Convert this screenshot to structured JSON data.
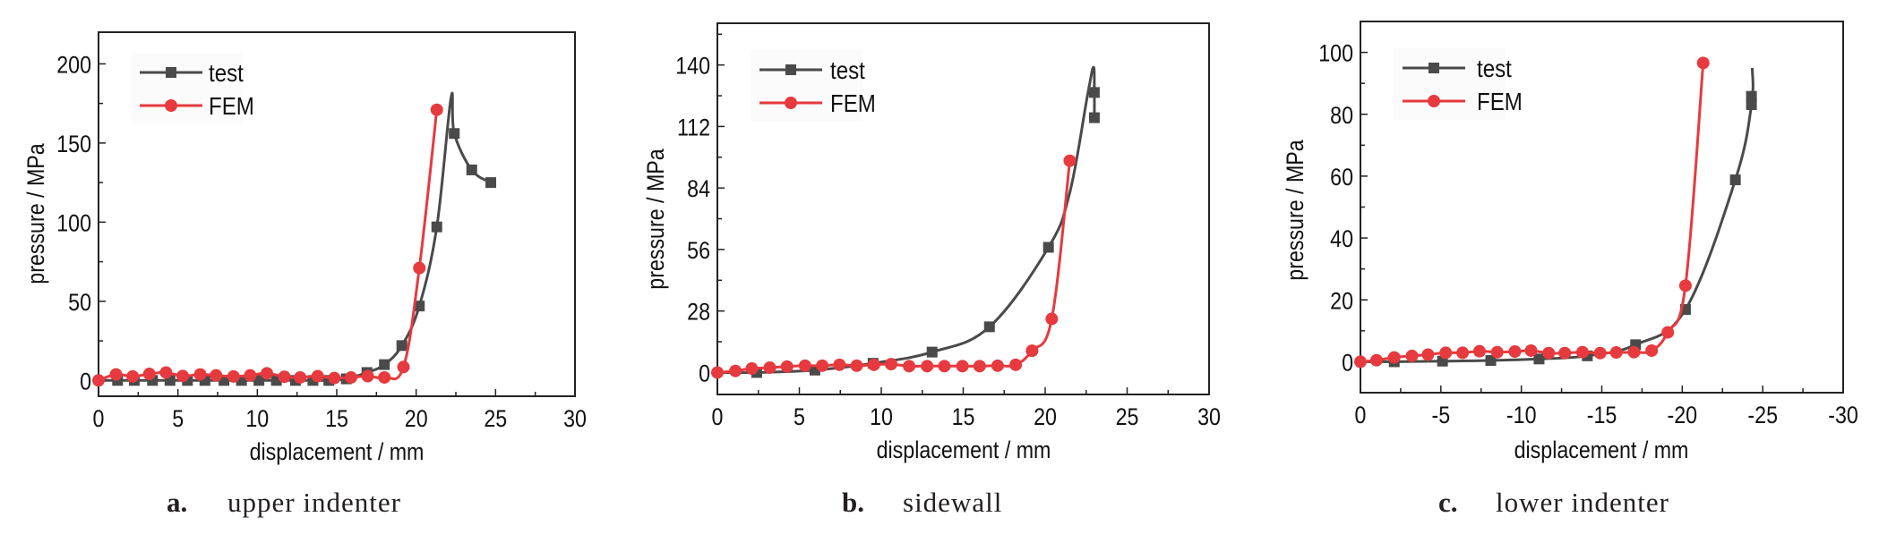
{
  "colors": {
    "test": "#4a4a4a",
    "fem": "#e63a3e",
    "axis": "#222222"
  },
  "chart_data": [
    {
      "type": "line",
      "panel_letter": "a.",
      "caption": "upper indenter",
      "xlabel": "displacement / mm",
      "ylabel": "pressure / MPa",
      "xlim": [
        0,
        30
      ],
      "ylim": [
        -10,
        220
      ],
      "xticks": [
        0,
        5,
        10,
        15,
        20,
        25,
        30
      ],
      "xtick_labels": [
        "0",
        "5",
        "10",
        "15",
        "20",
        "25",
        "30"
      ],
      "yticks": [
        0,
        50,
        100,
        150,
        200
      ],
      "ytick_labels": [
        "0",
        "50",
        "100",
        "150",
        "200"
      ],
      "minor_y_step": 25,
      "minor_x_step": 2.5,
      "legend": {
        "placement": "top-left",
        "entries": [
          "test",
          "FEM"
        ]
      },
      "grid": false,
      "series": [
        {
          "name": "test",
          "marker": "square",
          "line_points": [
            [
              0,
              0
            ],
            [
              1.2,
              0
            ],
            [
              2.25,
              0
            ],
            [
              3.4,
              0
            ],
            [
              4.5,
              0
            ],
            [
              5.6,
              0
            ],
            [
              6.7,
              0
            ],
            [
              7.9,
              0
            ],
            [
              9.0,
              0
            ],
            [
              10.1,
              0
            ],
            [
              11.2,
              0
            ],
            [
              12.4,
              0
            ],
            [
              13.5,
              0
            ],
            [
              14.5,
              0
            ],
            [
              15.6,
              1
            ],
            [
              16.9,
              5
            ],
            [
              18.0,
              10
            ],
            [
              19.1,
              22
            ],
            [
              20.2,
              47
            ],
            [
              21.3,
              97
            ],
            [
              22.2,
              179
            ],
            [
              22.4,
              156
            ],
            [
              23.5,
              133
            ],
            [
              24.7,
              125
            ]
          ],
          "markers": [
            [
              1.2,
              0
            ],
            [
              2.25,
              0
            ],
            [
              3.4,
              0
            ],
            [
              4.5,
              0
            ],
            [
              5.6,
              0
            ],
            [
              6.7,
              0
            ],
            [
              7.9,
              0
            ],
            [
              9.0,
              0
            ],
            [
              10.1,
              0
            ],
            [
              11.2,
              0
            ],
            [
              12.4,
              0
            ],
            [
              13.5,
              0
            ],
            [
              14.5,
              0
            ],
            [
              15.6,
              1
            ],
            [
              16.9,
              5
            ],
            [
              18.0,
              10
            ],
            [
              19.1,
              22
            ],
            [
              20.2,
              47
            ],
            [
              21.3,
              97
            ],
            [
              22.4,
              156
            ],
            [
              23.5,
              133
            ],
            [
              24.7,
              125
            ]
          ]
        },
        {
          "name": "FEM",
          "marker": "circle",
          "line_points": [
            [
              0,
              0
            ],
            [
              1.1,
              3.8
            ],
            [
              2.15,
              2.5
            ],
            [
              3.2,
              4.1
            ],
            [
              4.25,
              5.0
            ],
            [
              5.3,
              2.8
            ],
            [
              6.4,
              3.8
            ],
            [
              7.4,
              3.2
            ],
            [
              8.5,
              2.5
            ],
            [
              9.55,
              3.2
            ],
            [
              10.6,
              4.5
            ],
            [
              11.7,
              2.3
            ],
            [
              12.7,
              1.9
            ],
            [
              13.8,
              2.7
            ],
            [
              14.85,
              1.5
            ],
            [
              15.9,
              1.9
            ],
            [
              16.95,
              2.7
            ],
            [
              18.0,
              1.9
            ],
            [
              19.2,
              8.5
            ],
            [
              20.2,
              71
            ],
            [
              21.3,
              171
            ]
          ],
          "markers": [
            [
              0,
              0
            ],
            [
              1.1,
              3.8
            ],
            [
              2.15,
              2.5
            ],
            [
              3.2,
              4.1
            ],
            [
              4.25,
              5.0
            ],
            [
              5.3,
              2.8
            ],
            [
              6.4,
              3.8
            ],
            [
              7.4,
              3.2
            ],
            [
              8.5,
              2.5
            ],
            [
              9.55,
              3.2
            ],
            [
              10.6,
              4.5
            ],
            [
              11.7,
              2.3
            ],
            [
              12.7,
              1.9
            ],
            [
              13.8,
              2.7
            ],
            [
              14.85,
              1.5
            ],
            [
              15.9,
              1.9
            ],
            [
              16.95,
              2.7
            ],
            [
              18.0,
              1.9
            ],
            [
              19.2,
              8.5
            ],
            [
              20.2,
              71
            ],
            [
              21.3,
              171
            ]
          ]
        }
      ]
    },
    {
      "type": "line",
      "panel_letter": "b.",
      "caption": "sidewall",
      "xlabel": "displacement / mm",
      "ylabel": "pressure / MPa",
      "xlim": [
        0,
        30
      ],
      "ylim": [
        -10,
        159
      ],
      "xticks": [
        0,
        5,
        10,
        15,
        20,
        25,
        30
      ],
      "xtick_labels": [
        "0",
        "5",
        "10",
        "15",
        "20",
        "25",
        "30"
      ],
      "yticks": [
        0,
        28,
        56,
        84,
        112,
        140
      ],
      "ytick_labels": [
        "0",
        "28",
        "56",
        "84",
        "112",
        "140"
      ],
      "minor_y_step": 14,
      "minor_x_step": 2.5,
      "legend": {
        "placement": "top-left",
        "entries": [
          "test",
          "FEM"
        ]
      },
      "grid": false,
      "series": [
        {
          "name": "test",
          "marker": "square",
          "line_points": [
            [
              0,
              0
            ],
            [
              2.4,
              0
            ],
            [
              5.95,
              1.1
            ],
            [
              9.5,
              4.2
            ],
            [
              13.1,
              9.3
            ],
            [
              16.6,
              20.8
            ],
            [
              20.2,
              57
            ],
            [
              21.5,
              82
            ],
            [
              22.6,
              127
            ],
            [
              22.95,
              139
            ],
            [
              23.0,
              127.5
            ],
            [
              23.0,
              116
            ]
          ],
          "markers": [
            [
              2.4,
              0
            ],
            [
              5.95,
              1.1
            ],
            [
              9.5,
              4.2
            ],
            [
              13.1,
              9.3
            ],
            [
              16.6,
              20.8
            ],
            [
              20.2,
              57
            ],
            [
              23.0,
              127.5
            ],
            [
              23.0,
              116
            ]
          ]
        },
        {
          "name": "FEM",
          "marker": "circle",
          "line_points": [
            [
              0,
              0
            ],
            [
              1.1,
              0.7
            ],
            [
              2.1,
              1.8
            ],
            [
              3.2,
              2.2
            ],
            [
              4.25,
              2.7
            ],
            [
              5.35,
              3.1
            ],
            [
              6.4,
              3.1
            ],
            [
              7.45,
              3.5
            ],
            [
              8.5,
              3.1
            ],
            [
              9.55,
              3.5
            ],
            [
              10.6,
              3.8
            ],
            [
              11.7,
              2.9
            ],
            [
              12.8,
              2.9
            ],
            [
              13.85,
              2.9
            ],
            [
              14.95,
              2.9
            ],
            [
              16.0,
              2.9
            ],
            [
              17.1,
              3.1
            ],
            [
              18.2,
              3.5
            ],
            [
              19.2,
              9.9
            ],
            [
              20.4,
              24.4
            ],
            [
              21.5,
              96.4
            ]
          ],
          "markers": [
            [
              0,
              0
            ],
            [
              1.1,
              0.7
            ],
            [
              2.1,
              1.8
            ],
            [
              3.2,
              2.2
            ],
            [
              4.25,
              2.7
            ],
            [
              5.35,
              3.1
            ],
            [
              6.4,
              3.1
            ],
            [
              7.45,
              3.5
            ],
            [
              8.5,
              3.1
            ],
            [
              9.55,
              3.5
            ],
            [
              10.6,
              3.8
            ],
            [
              11.7,
              2.9
            ],
            [
              12.8,
              2.9
            ],
            [
              13.85,
              2.9
            ],
            [
              14.95,
              2.9
            ],
            [
              16.0,
              2.9
            ],
            [
              17.1,
              3.1
            ],
            [
              18.2,
              3.5
            ],
            [
              19.2,
              9.9
            ],
            [
              20.4,
              24.4
            ],
            [
              21.5,
              96.4
            ]
          ]
        }
      ]
    },
    {
      "type": "line",
      "panel_letter": "c.",
      "caption": "lower indenter",
      "xlabel": "displacement / mm",
      "ylabel": "pressure / MPa",
      "xlim": [
        0,
        -30
      ],
      "ylim": [
        -10,
        110
      ],
      "xticks": [
        0,
        -5,
        -10,
        -15,
        -20,
        -25,
        -30
      ],
      "xtick_labels": [
        "0",
        "-5",
        "-10",
        "-15",
        "-20",
        "-25",
        "-30"
      ],
      "yticks": [
        0,
        20,
        40,
        60,
        80,
        100
      ],
      "ytick_labels": [
        "0",
        "20",
        "40",
        "60",
        "80",
        "100"
      ],
      "minor_y_step": 10,
      "minor_x_step": 2.5,
      "legend": {
        "placement": "top-left",
        "entries": [
          "test",
          "FEM"
        ]
      },
      "grid": false,
      "series": [
        {
          "name": "test",
          "marker": "square",
          "line_points": [
            [
              0,
              0
            ],
            [
              -2.1,
              0
            ],
            [
              -5.1,
              0.2
            ],
            [
              -8.1,
              0.4
            ],
            [
              -11.1,
              0.9
            ],
            [
              -14.1,
              1.9
            ],
            [
              -17.1,
              5.5
            ],
            [
              -20.2,
              16.9
            ],
            [
              -23.3,
              58.8
            ],
            [
              -24.3,
              83
            ],
            [
              -24.35,
              95
            ]
          ],
          "markers": [
            [
              -2.1,
              0
            ],
            [
              -5.1,
              0.2
            ],
            [
              -8.1,
              0.4
            ],
            [
              -11.1,
              0.9
            ],
            [
              -14.1,
              1.9
            ],
            [
              -17.1,
              5.5
            ],
            [
              -20.2,
              16.9
            ],
            [
              -23.3,
              58.8
            ],
            [
              -24.3,
              83.1
            ],
            [
              -24.3,
              85.8
            ]
          ]
        },
        {
          "name": "FEM",
          "marker": "circle",
          "line_points": [
            [
              0,
              0
            ],
            [
              -1.0,
              0.5
            ],
            [
              -2.1,
              1.4
            ],
            [
              -3.2,
              1.9
            ],
            [
              -4.2,
              2.3
            ],
            [
              -5.3,
              2.9
            ],
            [
              -6.35,
              2.9
            ],
            [
              -7.4,
              3.4
            ],
            [
              -8.5,
              3.1
            ],
            [
              -9.6,
              3.3
            ],
            [
              -10.6,
              3.6
            ],
            [
              -11.7,
              2.8
            ],
            [
              -12.7,
              2.8
            ],
            [
              -13.8,
              3.1
            ],
            [
              -14.9,
              2.8
            ],
            [
              -15.9,
              3.0
            ],
            [
              -17.0,
              3.1
            ],
            [
              -18.1,
              3.6
            ],
            [
              -19.1,
              9.5
            ],
            [
              -20.2,
              24.6
            ],
            [
              -21.3,
              96.6
            ]
          ],
          "markers": [
            [
              0,
              0
            ],
            [
              -1.0,
              0.5
            ],
            [
              -2.1,
              1.4
            ],
            [
              -3.2,
              1.9
            ],
            [
              -4.2,
              2.3
            ],
            [
              -5.3,
              2.9
            ],
            [
              -6.35,
              2.9
            ],
            [
              -7.4,
              3.4
            ],
            [
              -8.5,
              3.1
            ],
            [
              -9.6,
              3.3
            ],
            [
              -10.6,
              3.6
            ],
            [
              -11.7,
              2.8
            ],
            [
              -12.7,
              2.8
            ],
            [
              -13.8,
              3.1
            ],
            [
              -14.9,
              2.8
            ],
            [
              -15.9,
              3.0
            ],
            [
              -17.0,
              3.1
            ],
            [
              -18.1,
              3.6
            ],
            [
              -19.1,
              9.5
            ],
            [
              -20.2,
              24.6
            ],
            [
              -21.3,
              96.6
            ]
          ]
        }
      ]
    }
  ]
}
